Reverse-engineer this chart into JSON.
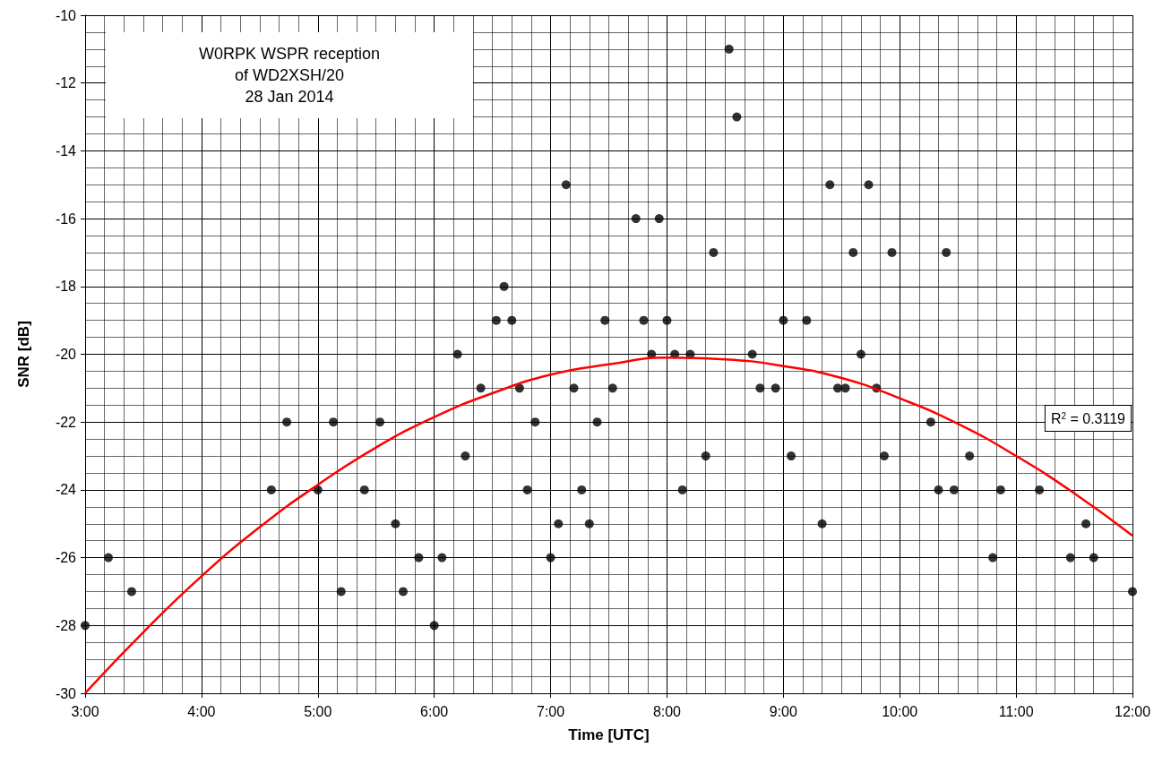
{
  "chart_data": {
    "type": "scatter",
    "title": "W0RPK WSPR reception\nof WD2XSH/20\n28 Jan 2014",
    "xlabel": "Time [UTC]",
    "ylabel": "SNR [dB]",
    "xlim": [
      3,
      12
    ],
    "xticks": [
      {
        "value": 3,
        "label": "3:00"
      },
      {
        "value": 4,
        "label": "4:00"
      },
      {
        "value": 5,
        "label": "5:00"
      },
      {
        "value": 6,
        "label": "6:00"
      },
      {
        "value": 7,
        "label": "7:00"
      },
      {
        "value": 8,
        "label": "8:00"
      },
      {
        "value": 9,
        "label": "9:00"
      },
      {
        "value": 10,
        "label": "10:00"
      },
      {
        "value": 11,
        "label": "11:00"
      },
      {
        "value": 12,
        "label": "12:00"
      }
    ],
    "ylim": [
      -30,
      -10
    ],
    "yticks": [
      -30,
      -28,
      -26,
      -24,
      -22,
      -20,
      -18,
      -16,
      -14,
      -12,
      -10
    ],
    "grid": true,
    "marker": "circle",
    "annotations": [
      "R$^{2}$ = 0.3119"
    ],
    "series": [
      {
        "color": "#000000",
        "x": [
          3.0,
          3.2,
          3.4,
          4.6,
          4.733,
          5.0,
          5.133,
          5.2,
          5.4,
          5.533,
          5.667,
          5.733,
          5.867,
          6.0,
          6.067,
          6.2,
          6.267,
          6.4,
          6.533,
          6.6,
          6.667,
          6.733,
          6.8,
          6.867,
          7.0,
          7.067,
          7.133,
          7.2,
          7.267,
          7.333,
          7.4,
          7.467,
          7.533,
          7.733,
          7.8,
          7.867,
          7.933,
          8.0,
          8.067,
          8.133,
          8.2,
          8.333,
          8.4,
          8.533,
          8.6,
          8.733,
          8.8,
          8.933,
          9.0,
          9.067,
          9.2,
          9.333,
          9.4,
          9.467,
          9.533,
          9.6,
          9.667,
          9.733,
          9.8,
          9.867,
          9.933,
          10.267,
          10.333,
          10.4,
          10.467,
          10.6,
          10.8,
          10.867,
          11.2,
          11.467,
          11.6,
          11.667,
          12.0
        ],
        "values": [
          -28,
          -26,
          -27,
          -24,
          -22,
          -24,
          -22,
          -27,
          -24,
          -22,
          -25,
          -27,
          -26,
          -28,
          -26,
          -20,
          -23,
          -21,
          -19,
          -18,
          -19,
          -21,
          -24,
          -22,
          -26,
          -25,
          -15,
          -21,
          -24,
          -25,
          -22,
          -19,
          -21,
          -16,
          -19,
          -20,
          -16,
          -19,
          -20,
          -24,
          -20,
          -23,
          -17,
          -11,
          -13,
          -20,
          -21,
          -21,
          -19,
          -23,
          -19,
          -25,
          -15,
          -21,
          -21,
          -17,
          -20,
          -15,
          -21,
          -23,
          -17,
          -22,
          -24,
          -17,
          -24,
          -23,
          -26,
          -24,
          -24,
          -26,
          -25,
          -26,
          -27
        ]
      },
      {
        "type": "line",
        "color": "#ff0000",
        "marker": "none",
        "x": [
          3,
          3.5,
          4,
          4.5,
          5,
          5.5,
          6,
          6.5,
          7,
          7.5,
          8,
          8.5,
          9,
          9.5,
          10,
          10.5,
          11,
          11.5,
          12
        ],
        "values": [
          -30.0,
          -28.2,
          -26.55,
          -25.1,
          -23.85,
          -22.75,
          -21.85,
          -21.15,
          -20.6,
          -20.3,
          -20.1,
          -20.15,
          -20.35,
          -20.7,
          -21.3,
          -22.05,
          -23.0,
          -24.1,
          -25.35
        ]
      }
    ]
  }
}
